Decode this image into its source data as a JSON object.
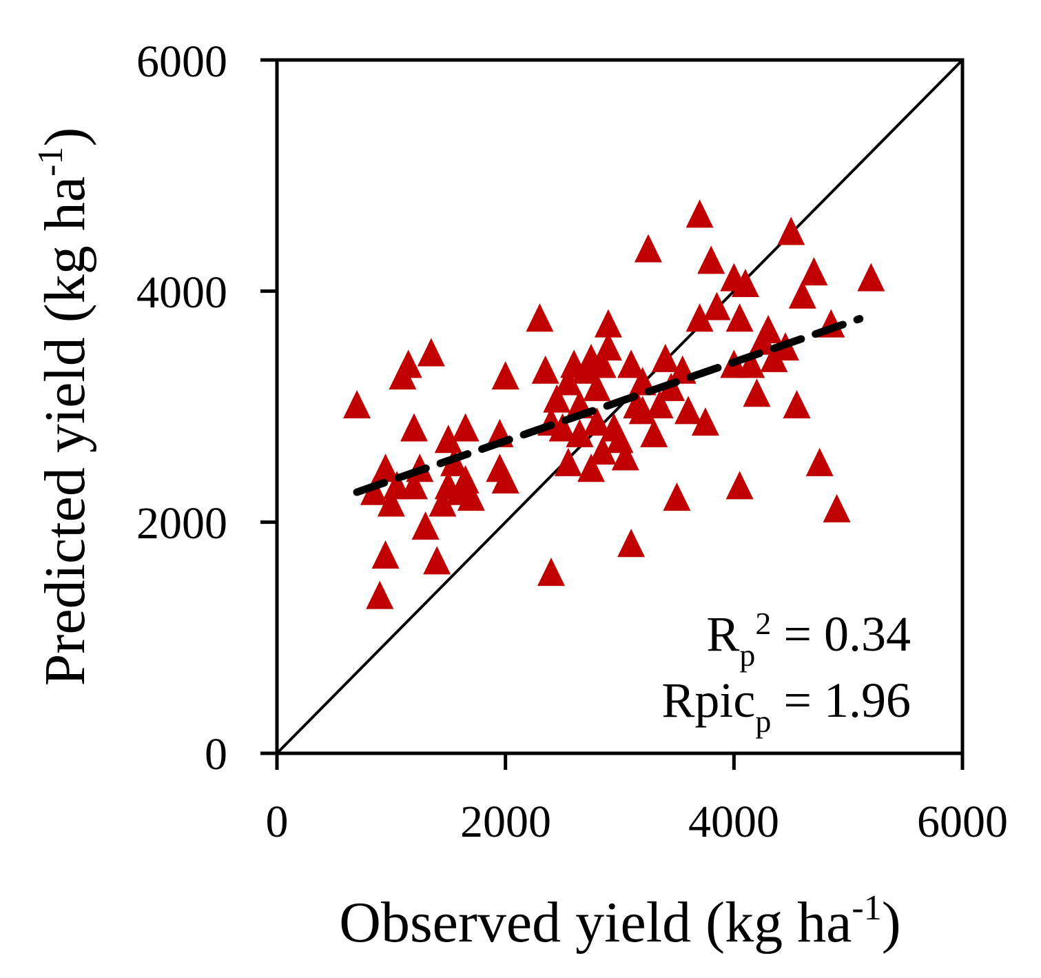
{
  "chart_data": {
    "type": "scatter",
    "title": "",
    "xlabel": "Observed yield (kg ha",
    "xlabel_sup": "-1",
    "xlabel_close": ")",
    "ylabel": "Predicted yield (kg ha",
    "ylabel_sup": "-1",
    "ylabel_close": ")",
    "xlim": [
      0,
      6000
    ],
    "ylim": [
      0,
      6000
    ],
    "xticks": [
      0,
      2000,
      4000,
      6000
    ],
    "yticks": [
      0,
      2000,
      4000,
      6000
    ],
    "xtick_labels": [
      "0",
      "2000",
      "4000",
      "6000"
    ],
    "ytick_labels": [
      "0",
      "2000",
      "4000",
      "6000"
    ],
    "grid": false,
    "marker": "triangle",
    "marker_color": "#c00000",
    "reference_line": {
      "name": "1:1 line",
      "from": [
        0,
        0
      ],
      "to": [
        6000,
        6000
      ],
      "style": "solid"
    },
    "fit_line": {
      "name": "regression",
      "from": [
        700,
        2260
      ],
      "to": [
        5100,
        3760
      ],
      "style": "dashed"
    },
    "annotations": {
      "r2_main": "R",
      "r2_sub": "p",
      "r2_sup": "2",
      "r2_value": " = 0.34",
      "rpic_main": "Rpic",
      "rpic_sub": "p",
      "rpic_value": " = 1.96"
    },
    "points": [
      {
        "x": 700,
        "y": 3000
      },
      {
        "x": 850,
        "y": 2250
      },
      {
        "x": 900,
        "y": 1350
      },
      {
        "x": 950,
        "y": 1700
      },
      {
        "x": 950,
        "y": 2450
      },
      {
        "x": 1000,
        "y": 2150
      },
      {
        "x": 1050,
        "y": 2300
      },
      {
        "x": 1100,
        "y": 3250
      },
      {
        "x": 1150,
        "y": 3350
      },
      {
        "x": 1200,
        "y": 2800
      },
      {
        "x": 1200,
        "y": 2300
      },
      {
        "x": 1250,
        "y": 2450
      },
      {
        "x": 1300,
        "y": 1950
      },
      {
        "x": 1350,
        "y": 3450
      },
      {
        "x": 1400,
        "y": 1650
      },
      {
        "x": 1450,
        "y": 2150
      },
      {
        "x": 1500,
        "y": 2700
      },
      {
        "x": 1500,
        "y": 2300
      },
      {
        "x": 1550,
        "y": 2500
      },
      {
        "x": 1600,
        "y": 2250
      },
      {
        "x": 1650,
        "y": 2800
      },
      {
        "x": 1650,
        "y": 2350
      },
      {
        "x": 1700,
        "y": 2200
      },
      {
        "x": 1950,
        "y": 2750
      },
      {
        "x": 1950,
        "y": 2450
      },
      {
        "x": 2000,
        "y": 2350
      },
      {
        "x": 2000,
        "y": 3250
      },
      {
        "x": 2300,
        "y": 3750
      },
      {
        "x": 2350,
        "y": 3300
      },
      {
        "x": 2400,
        "y": 2850
      },
      {
        "x": 2400,
        "y": 1550
      },
      {
        "x": 2450,
        "y": 3050
      },
      {
        "x": 2500,
        "y": 2800
      },
      {
        "x": 2550,
        "y": 3200
      },
      {
        "x": 2550,
        "y": 2500
      },
      {
        "x": 2600,
        "y": 3350
      },
      {
        "x": 2650,
        "y": 3000
      },
      {
        "x": 2650,
        "y": 2750
      },
      {
        "x": 2700,
        "y": 3300
      },
      {
        "x": 2750,
        "y": 2450
      },
      {
        "x": 2750,
        "y": 3400
      },
      {
        "x": 2800,
        "y": 2850
      },
      {
        "x": 2800,
        "y": 3150
      },
      {
        "x": 2850,
        "y": 2600
      },
      {
        "x": 2850,
        "y": 3350
      },
      {
        "x": 2900,
        "y": 3700
      },
      {
        "x": 2900,
        "y": 3500
      },
      {
        "x": 2950,
        "y": 2800
      },
      {
        "x": 3000,
        "y": 2700
      },
      {
        "x": 3050,
        "y": 2550
      },
      {
        "x": 3100,
        "y": 1800
      },
      {
        "x": 3100,
        "y": 3350
      },
      {
        "x": 3150,
        "y": 3000
      },
      {
        "x": 3200,
        "y": 2950
      },
      {
        "x": 3200,
        "y": 3200
      },
      {
        "x": 3250,
        "y": 4350
      },
      {
        "x": 3300,
        "y": 2750
      },
      {
        "x": 3350,
        "y": 3000
      },
      {
        "x": 3400,
        "y": 3400
      },
      {
        "x": 3450,
        "y": 3150
      },
      {
        "x": 3500,
        "y": 2200
      },
      {
        "x": 3550,
        "y": 3300
      },
      {
        "x": 3600,
        "y": 2950
      },
      {
        "x": 3700,
        "y": 4650
      },
      {
        "x": 3700,
        "y": 3750
      },
      {
        "x": 3750,
        "y": 2850
      },
      {
        "x": 3800,
        "y": 4250
      },
      {
        "x": 3850,
        "y": 3850
      },
      {
        "x": 4000,
        "y": 4100
      },
      {
        "x": 4000,
        "y": 3350
      },
      {
        "x": 4050,
        "y": 3750
      },
      {
        "x": 4050,
        "y": 2300
      },
      {
        "x": 4100,
        "y": 4050
      },
      {
        "x": 4150,
        "y": 3350
      },
      {
        "x": 4200,
        "y": 3100
      },
      {
        "x": 4250,
        "y": 3550
      },
      {
        "x": 4300,
        "y": 3650
      },
      {
        "x": 4350,
        "y": 3400
      },
      {
        "x": 4450,
        "y": 3500
      },
      {
        "x": 4500,
        "y": 4500
      },
      {
        "x": 4550,
        "y": 3000
      },
      {
        "x": 4600,
        "y": 3950
      },
      {
        "x": 4700,
        "y": 4150
      },
      {
        "x": 4750,
        "y": 2500
      },
      {
        "x": 4850,
        "y": 3700
      },
      {
        "x": 4900,
        "y": 2100
      },
      {
        "x": 5200,
        "y": 4100
      }
    ]
  }
}
